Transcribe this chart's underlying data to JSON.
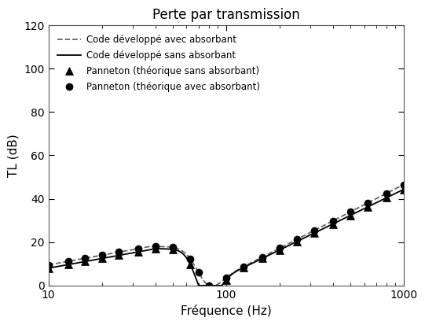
{
  "title": "Perte par transmission",
  "xlabel": "Fréquence (Hz)",
  "ylabel": "TL (dB)",
  "xlim": [
    10,
    1000
  ],
  "ylim": [
    0,
    120
  ],
  "yticks": [
    0,
    20,
    40,
    60,
    80,
    100,
    120
  ],
  "legend_labels": [
    "Code développé avec absorbant",
    "Code développé sans absorbant",
    "Panneton (théorique sans absorbant)",
    "Panneton (théorique avec absorbant)"
  ],
  "line_avec_color": "#666666",
  "line_sans_color": "#000000",
  "marker_color": "#000000",
  "background_color": "#ffffff",
  "title_fontsize": 12,
  "label_fontsize": 11
}
